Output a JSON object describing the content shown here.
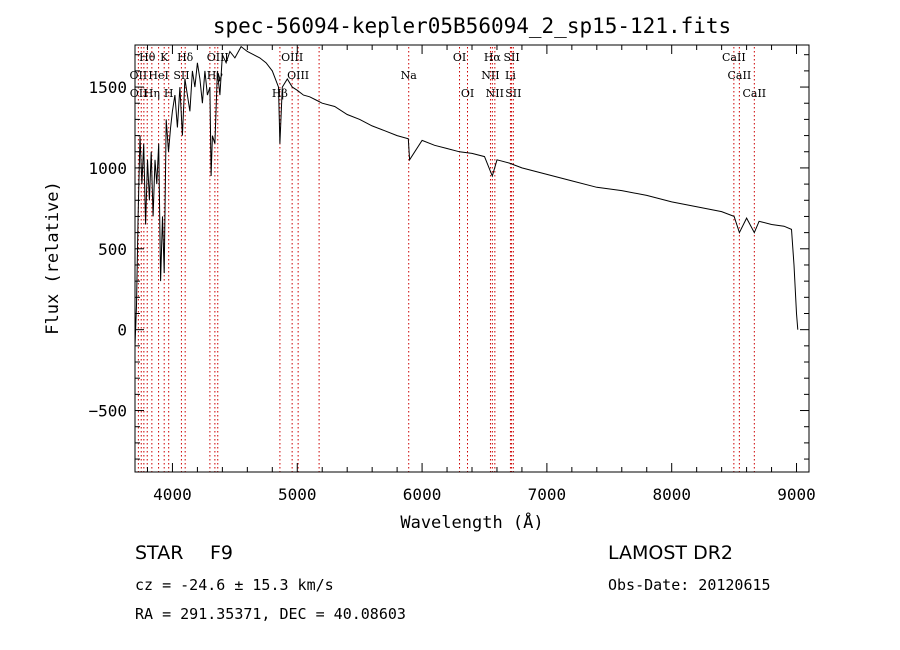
{
  "chart_data": {
    "type": "line",
    "title": "spec-56094-kepler05B56094_2_sp15-121.fits",
    "xlabel": "Wavelength (Å)",
    "ylabel": "Flux (relative)",
    "xlim": [
      3700,
      9100
    ],
    "ylim": [
      -880,
      1760
    ],
    "xticks": [
      4000,
      5000,
      6000,
      7000,
      8000,
      9000
    ],
    "yticks": [
      -500,
      0,
      500,
      1000,
      1500
    ],
    "grid": false,
    "series": [
      {
        "values_x": [
          3700,
          3712,
          3725,
          3740,
          3755,
          3770,
          3785,
          3800,
          3815,
          3830,
          3845,
          3860,
          3875,
          3890,
          3905,
          3920,
          3934,
          3950,
          3968,
          3985,
          4000,
          4020,
          4040,
          4060,
          4080,
          4100,
          4120,
          4140,
          4160,
          4180,
          4200,
          4220,
          4240,
          4260,
          4280,
          4300,
          4310,
          4320,
          4340,
          4360,
          4380,
          4400,
          4430,
          4460,
          4500,
          4550,
          4600,
          4650,
          4700,
          4750,
          4800,
          4850,
          4861,
          4880,
          4920,
          4960,
          5000,
          5050,
          5100,
          5150,
          5200,
          5300,
          5400,
          5500,
          5600,
          5700,
          5800,
          5890,
          5900,
          6000,
          6100,
          6200,
          6300,
          6400,
          6500,
          6563,
          6600,
          6700,
          6800,
          7000,
          7200,
          7400,
          7600,
          7800,
          8000,
          8200,
          8400,
          8500,
          8542,
          8600,
          8662,
          8700,
          8800,
          8900,
          8960,
          8980,
          9000,
          9010
        ],
        "values_y": [
          -100,
          150,
          700,
          1200,
          900,
          1150,
          650,
          1050,
          800,
          1100,
          700,
          1050,
          900,
          1150,
          300,
          700,
          350,
          1300,
          1100,
          1250,
          1350,
          1450,
          1250,
          1500,
          1200,
          1550,
          1450,
          1350,
          1600,
          1500,
          1650,
          1550,
          1400,
          1600,
          1450,
          1500,
          950,
          1200,
          1150,
          1600,
          1450,
          1700,
          1650,
          1720,
          1680,
          1750,
          1720,
          1700,
          1680,
          1650,
          1600,
          1500,
          1150,
          1500,
          1550,
          1500,
          1480,
          1450,
          1440,
          1420,
          1400,
          1380,
          1330,
          1300,
          1260,
          1230,
          1200,
          1180,
          1050,
          1170,
          1140,
          1120,
          1100,
          1090,
          1070,
          950,
          1050,
          1030,
          1000,
          960,
          920,
          880,
          860,
          830,
          790,
          760,
          730,
          700,
          600,
          690,
          600,
          670,
          650,
          640,
          620,
          400,
          100,
          0
        ]
      }
    ],
    "annotations": [
      {
        "text": "Hθ",
        "x": 3798
      },
      {
        "text": "K",
        "x": 3934
      },
      {
        "text": "Hδ",
        "x": 4102
      },
      {
        "text": "OIII",
        "x": 4363
      },
      {
        "text": "OIII",
        "x": 4959
      },
      {
        "text": "OI",
        "x": 6300
      },
      {
        "text": "Hα",
        "x": 6563
      },
      {
        "text": "SII",
        "x": 6717
      },
      {
        "text": "CaII",
        "x": 8498
      },
      {
        "text": "OII",
        "x": 3727
      },
      {
        "text": "HeI",
        "x": 3889
      },
      {
        "text": "SII",
        "x": 4072
      },
      {
        "text": "Hγ",
        "x": 4340
      },
      {
        "text": "OIII",
        "x": 5007
      },
      {
        "text": "Na",
        "x": 5893
      },
      {
        "text": "NII",
        "x": 6548
      },
      {
        "text": "Li",
        "x": 6708
      },
      {
        "text": "CaII",
        "x": 8542
      },
      {
        "text": "OII",
        "x": 3729
      },
      {
        "text": "Hη",
        "x": 3835
      },
      {
        "text": "H",
        "x": 3970
      },
      {
        "text": "Hβ",
        "x": 4861
      },
      {
        "text": "OI",
        "x": 6364
      },
      {
        "text": "NII",
        "x": 6583
      },
      {
        "text": "SII",
        "x": 6731
      },
      {
        "text": "CaII",
        "x": 8662
      }
    ],
    "line_markers_x": [
      3727,
      3750,
      3771,
      3798,
      3835,
      3889,
      3934,
      3970,
      4072,
      4102,
      4300,
      4340,
      4363,
      4861,
      4959,
      5007,
      5175,
      5893,
      6300,
      6364,
      6548,
      6563,
      6583,
      6708,
      6717,
      6731,
      8498,
      8542,
      8662
    ]
  },
  "footer": {
    "object_class": "STAR",
    "subclass": "F9",
    "survey": "LAMOST DR2",
    "cz": "cz = -24.6 ± 15.3 km/s",
    "obs_date": "Obs-Date: 20120615",
    "coords": "RA = 291.35371, DEC =  40.08603"
  }
}
